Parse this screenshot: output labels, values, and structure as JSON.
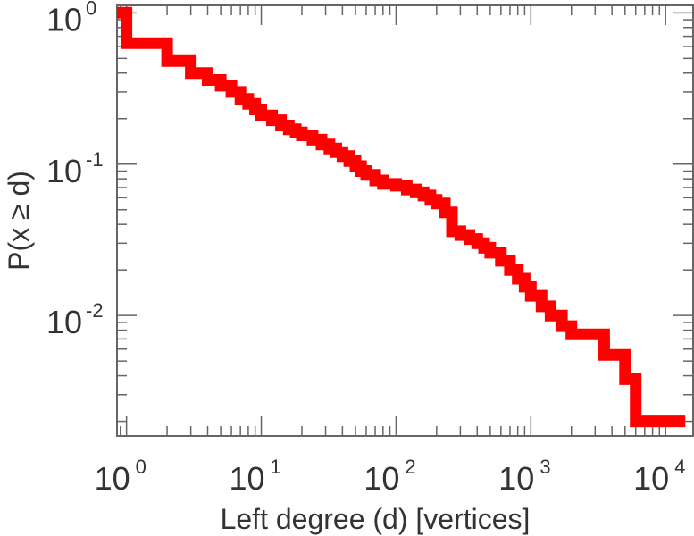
{
  "chart_data": {
    "type": "line",
    "step": true,
    "xlabel": "Left degree (d) [vertices]",
    "ylabel": "P(x ≥ d)",
    "xscale": "log",
    "yscale": "log",
    "xlim": [
      0.85,
      16000
    ],
    "ylim": [
      0.0016,
      1.12
    ],
    "x_ticks": [
      {
        "value": 1,
        "base": "10",
        "exp": "0"
      },
      {
        "value": 10,
        "base": "10",
        "exp": "1"
      },
      {
        "value": 100,
        "base": "10",
        "exp": "2"
      },
      {
        "value": 1000,
        "base": "10",
        "exp": "3"
      },
      {
        "value": 10000,
        "base": "10",
        "exp": "4"
      }
    ],
    "y_ticks": [
      {
        "value": 1,
        "base": "10",
        "exp": "0"
      },
      {
        "value": 0.1,
        "base": "10",
        "exp": "-1"
      },
      {
        "value": 0.01,
        "base": "10",
        "exp": "-2"
      }
    ],
    "grid": false,
    "series": [
      {
        "color": "#ff0000",
        "x": [
          0.85,
          1,
          2,
          3,
          4,
          5,
          6,
          7,
          8,
          9,
          10,
          12,
          14,
          16,
          18,
          20,
          24,
          28,
          32,
          36,
          40,
          45,
          50,
          55,
          60,
          70,
          80,
          100,
          120,
          140,
          160,
          180,
          200,
          230,
          260,
          300,
          350,
          400,
          450,
          500,
          600,
          700,
          800,
          900,
          1000,
          1200,
          1400,
          1700,
          2000,
          3500,
          5000,
          6000,
          14000
        ],
        "y": [
          1.0,
          0.63,
          0.48,
          0.4,
          0.36,
          0.33,
          0.3,
          0.27,
          0.25,
          0.23,
          0.21,
          0.195,
          0.18,
          0.17,
          0.162,
          0.155,
          0.145,
          0.135,
          0.127,
          0.12,
          0.113,
          0.105,
          0.097,
          0.09,
          0.085,
          0.078,
          0.074,
          0.072,
          0.068,
          0.065,
          0.062,
          0.058,
          0.055,
          0.048,
          0.036,
          0.034,
          0.032,
          0.03,
          0.028,
          0.026,
          0.023,
          0.02,
          0.0175,
          0.0155,
          0.0135,
          0.0115,
          0.01,
          0.0085,
          0.0075,
          0.0055,
          0.0038,
          0.002,
          0.002
        ]
      }
    ]
  }
}
